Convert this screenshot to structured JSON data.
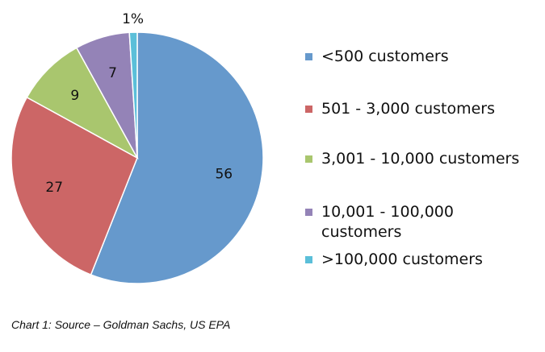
{
  "chart_data": {
    "type": "pie",
    "slices": [
      {
        "name": "<500 customers",
        "value": 56,
        "label": "56",
        "color": "#6699CC"
      },
      {
        "name": "501 - 3,000 customers",
        "value": 27,
        "label": "27",
        "color": "#CC6666"
      },
      {
        "name": "3,001 - 10,000 customers",
        "value": 9,
        "label": "9",
        "color": "#A9C66E"
      },
      {
        "name": "10,001 - 100,000 customers",
        "value": 7,
        "label": "7",
        "color": "#9483B7"
      },
      {
        "name": ">100,000 customers",
        "value": 1,
        "label": "1%",
        "color": "#5BBFD9"
      }
    ],
    "legend_position": "right",
    "start_angle": "12 o'clock",
    "direction": "clockwise"
  },
  "caption": "Chart 1: Source – Goldman Sachs, US EPA"
}
